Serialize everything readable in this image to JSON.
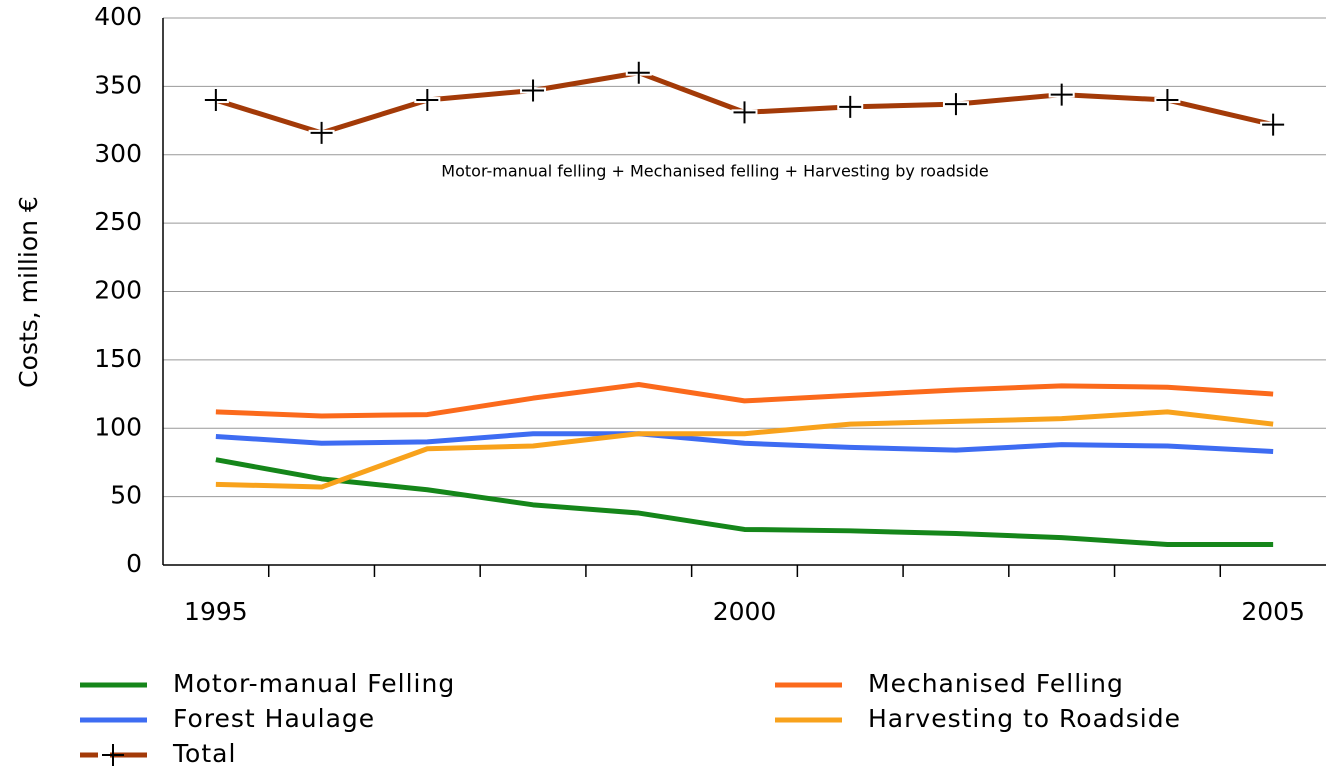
{
  "chart_data": {
    "type": "line",
    "y_label": "Costs, million €",
    "annotation": "Motor-manual felling + Mechanised felling + Harvesting by roadside",
    "categories": [
      "1995",
      null,
      null,
      null,
      null,
      "2000",
      null,
      null,
      null,
      null,
      "2005"
    ],
    "ylim": [
      0,
      400
    ],
    "yticks": [
      0,
      50,
      100,
      150,
      200,
      250,
      300,
      350,
      400
    ],
    "grid": true,
    "series": [
      {
        "name": "Motor-manual Felling",
        "color": "#15861a",
        "values": [
          77,
          63,
          55,
          44,
          38,
          26,
          25,
          23,
          20,
          15,
          15
        ]
      },
      {
        "name": "Mechanised Felling",
        "color": "#fb6a1c",
        "values": [
          112,
          109,
          110,
          122,
          132,
          120,
          124,
          128,
          131,
          130,
          125
        ]
      },
      {
        "name": "Forest Haulage",
        "color": "#3e6cf2",
        "values": [
          94,
          89,
          90,
          96,
          96,
          89,
          86,
          84,
          88,
          87,
          83
        ]
      },
      {
        "name": "Harvesting to Roadside",
        "color": "#f8a21c",
        "values": [
          59,
          57,
          85,
          87,
          96,
          96,
          103,
          105,
          107,
          112,
          103
        ]
      },
      {
        "name": "Total",
        "color": "#a33a08",
        "marker": "plus",
        "values": [
          340,
          316,
          340,
          347,
          360,
          331,
          335,
          337,
          344,
          340,
          322
        ]
      }
    ]
  }
}
